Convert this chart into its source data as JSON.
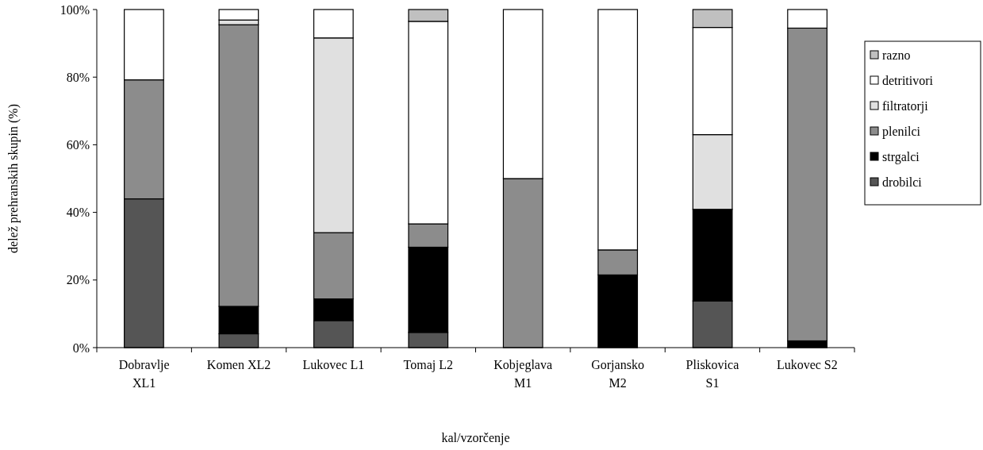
{
  "chart_data": {
    "type": "bar",
    "stacked": true,
    "xlabel": "kal/vzorčenje",
    "ylabel": "delež prehranskih skupin (%)",
    "categories": [
      "Dobravlje XL1",
      "Komen XL2",
      "Lukovec L1",
      "Tomaj L2",
      "Kobjeglava M1",
      "Gorjansko M2",
      "Pliskovica S1",
      "Lukovec S2"
    ],
    "series": [
      {
        "name": "drobilci",
        "color": "#555555",
        "values": [
          44.0,
          4.1,
          8.0,
          4.5,
          0,
          0,
          13.8,
          0
        ]
      },
      {
        "name": "strgalci",
        "color": "#000000",
        "values": [
          0,
          8.1,
          6.4,
          25.2,
          0,
          21.5,
          27.1,
          2.0
        ]
      },
      {
        "name": "plenilci",
        "color": "#8c8c8c",
        "values": [
          35.2,
          83.3,
          19.6,
          6.9,
          50,
          7.4,
          0,
          92.5
        ]
      },
      {
        "name": "filtratorji",
        "color": "#e0e0e0",
        "values": [
          0,
          1.4,
          57.6,
          0,
          0,
          0,
          22.1,
          0
        ]
      },
      {
        "name": "detritivori",
        "color": "#ffffff",
        "values": [
          20.8,
          3.1,
          8.4,
          59.9,
          50,
          71.1,
          31.7,
          5.5
        ]
      },
      {
        "name": "razno",
        "color": "#c0c0c0",
        "values": [
          0,
          0,
          0,
          3.5,
          0,
          0,
          5.3,
          0
        ]
      }
    ],
    "ylim": [
      0,
      100
    ],
    "yticks": [
      {
        "value": 0,
        "label": "0%"
      },
      {
        "value": 20,
        "label": "20%"
      },
      {
        "value": 40,
        "label": "40%"
      },
      {
        "value": 60,
        "label": "60%"
      },
      {
        "value": 80,
        "label": "80%"
      },
      {
        "value": 100,
        "label": "100%"
      }
    ],
    "grid": false,
    "legend": "right"
  }
}
